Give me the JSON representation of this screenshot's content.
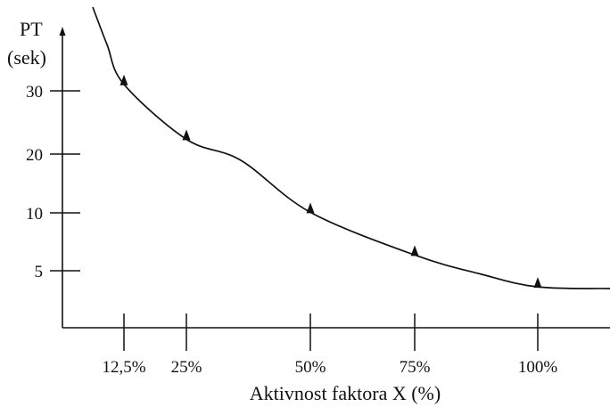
{
  "chart_data": {
    "type": "scatter",
    "title": "",
    "ylabel_line1": "PT",
    "ylabel_line2": "(sek)",
    "xlabel": "Aktivnost faktora X (%)",
    "x_categories": [
      "12,5%",
      "25%",
      "50%",
      "75%",
      "100%"
    ],
    "x_values": [
      12.5,
      25,
      50,
      75,
      100
    ],
    "y_ticks": [
      {
        "value": 5,
        "label": "5"
      },
      {
        "value": 10,
        "label": "10"
      },
      {
        "value": 20,
        "label": "20"
      },
      {
        "value": 30,
        "label": "30"
      }
    ],
    "y_scale": "log",
    "points": [
      {
        "x": 12.5,
        "y": 32
      },
      {
        "x": 25,
        "y": 22.5
      },
      {
        "x": 50,
        "y": 10.5
      },
      {
        "x": 75,
        "y": 6.3
      },
      {
        "x": 100,
        "y": 4.3
      }
    ],
    "fit_curve": true,
    "legend": "none",
    "grid": false,
    "colors": {
      "line": "#111111",
      "marker": "#111111"
    }
  }
}
